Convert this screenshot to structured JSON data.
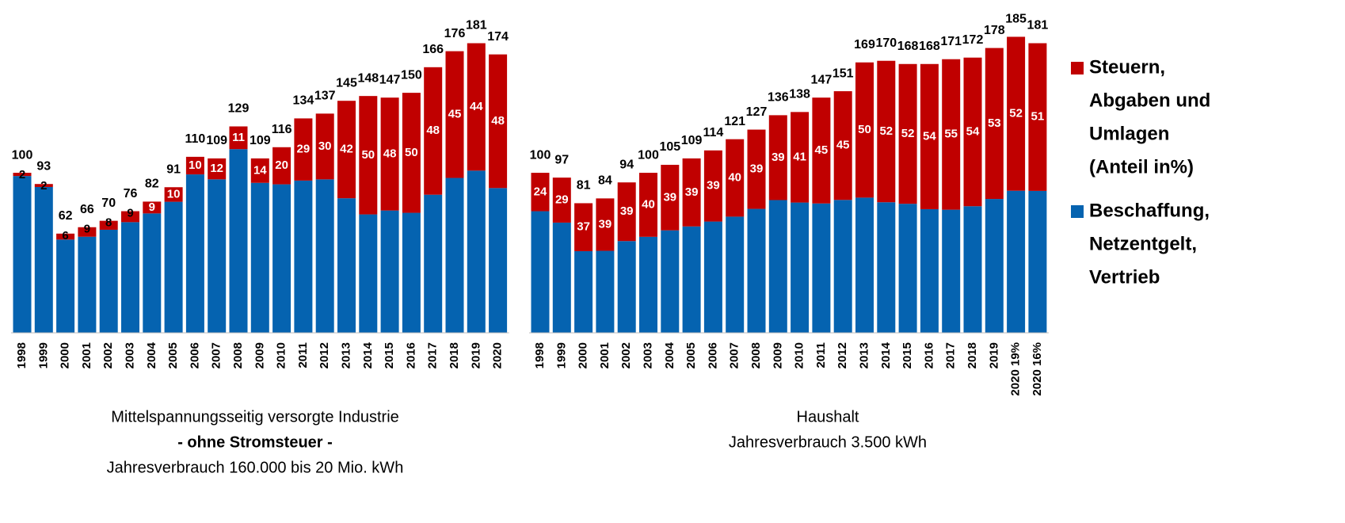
{
  "chart_data": {
    "type": "bar",
    "stacked": true,
    "ylim": [
      0,
      208
    ],
    "series": [
      {
        "name": [
          "Steuern,",
          "Abgaben und",
          "Umlagen",
          "(Anteil in%)"
        ],
        "color": "#c00000"
      },
      {
        "name": [
          "Beschaffung,",
          "Netzentgelt,",
          "Vertrieb"
        ],
        "color": "#0563b0"
      }
    ],
    "panels": [
      {
        "caption": [
          "Mittelspannungsseitig versorgte Industrie",
          "- ohne Stromsteuer -",
          "Jahresverbrauch 160.000 bis 20 Mio. kWh"
        ],
        "categories": [
          "1998",
          "1999",
          "2000",
          "2001",
          "2002",
          "2003",
          "2004",
          "2005",
          "2006",
          "2007",
          "2008",
          "2009",
          "2010",
          "2011",
          "2012",
          "2013",
          "2014",
          "2015",
          "2016",
          "2017",
          "2018",
          "2019",
          "2020"
        ],
        "totals": [
          100,
          93,
          62,
          66,
          70,
          76,
          82,
          91,
          110,
          109,
          129,
          109,
          116,
          134,
          137,
          145,
          148,
          147,
          150,
          166,
          176,
          181,
          174
        ],
        "shares": [
          2,
          2,
          6,
          9,
          8,
          9,
          9,
          10,
          10,
          12,
          11,
          14,
          20,
          29,
          30,
          42,
          50,
          48,
          50,
          48,
          45,
          44,
          48
        ]
      },
      {
        "caption": [
          "Haushalt",
          "Jahresverbrauch 3.500 kWh"
        ],
        "categories": [
          "1998",
          "1999",
          "2000",
          "2001",
          "2002",
          "2003",
          "2004",
          "2005",
          "2006",
          "2007",
          "2008",
          "2009",
          "2010",
          "2011",
          "2012",
          "2013",
          "2014",
          "2015",
          "2016",
          "2017",
          "2018",
          "2019",
          "2020 19%",
          "2020 16%"
        ],
        "totals": [
          100,
          97,
          81,
          84,
          94,
          100,
          105,
          109,
          114,
          121,
          127,
          136,
          138,
          147,
          151,
          169,
          170,
          168,
          168,
          171,
          172,
          178,
          185,
          181
        ],
        "shares": [
          24,
          29,
          37,
          39,
          39,
          40,
          39,
          39,
          39,
          40,
          39,
          39,
          41,
          45,
          45,
          50,
          52,
          52,
          54,
          55,
          54,
          53,
          52,
          51
        ]
      }
    ]
  }
}
